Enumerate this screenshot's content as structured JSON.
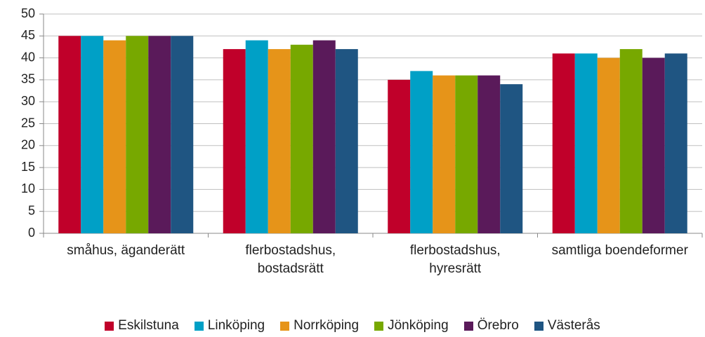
{
  "chart_data": {
    "type": "bar",
    "categories": [
      "småhus, äganderätt",
      "flerbostadshus, bostadsrätt",
      "flerbostadshus, hyresrätt",
      "samtliga boendeformer"
    ],
    "series": [
      {
        "name": "Eskilstuna",
        "color": "#c0002a",
        "values": [
          45,
          42,
          35,
          41
        ]
      },
      {
        "name": "Linköping",
        "color": "#00a0c6",
        "values": [
          45,
          44,
          37,
          41
        ]
      },
      {
        "name": "Norrköping",
        "color": "#e69419",
        "values": [
          44,
          42,
          36,
          40
        ]
      },
      {
        "name": "Jönköping",
        "color": "#77a800",
        "values": [
          45,
          43,
          36,
          42
        ]
      },
      {
        "name": "Örebro",
        "color": "#5a1a5a",
        "values": [
          45,
          44,
          36,
          40
        ]
      },
      {
        "name": "Västerås",
        "color": "#1f5582",
        "values": [
          45,
          42,
          34,
          41
        ]
      }
    ],
    "ylim": [
      0,
      50
    ],
    "yticks": [
      0,
      5,
      10,
      15,
      20,
      25,
      30,
      35,
      40,
      45,
      50
    ],
    "grid": true
  }
}
